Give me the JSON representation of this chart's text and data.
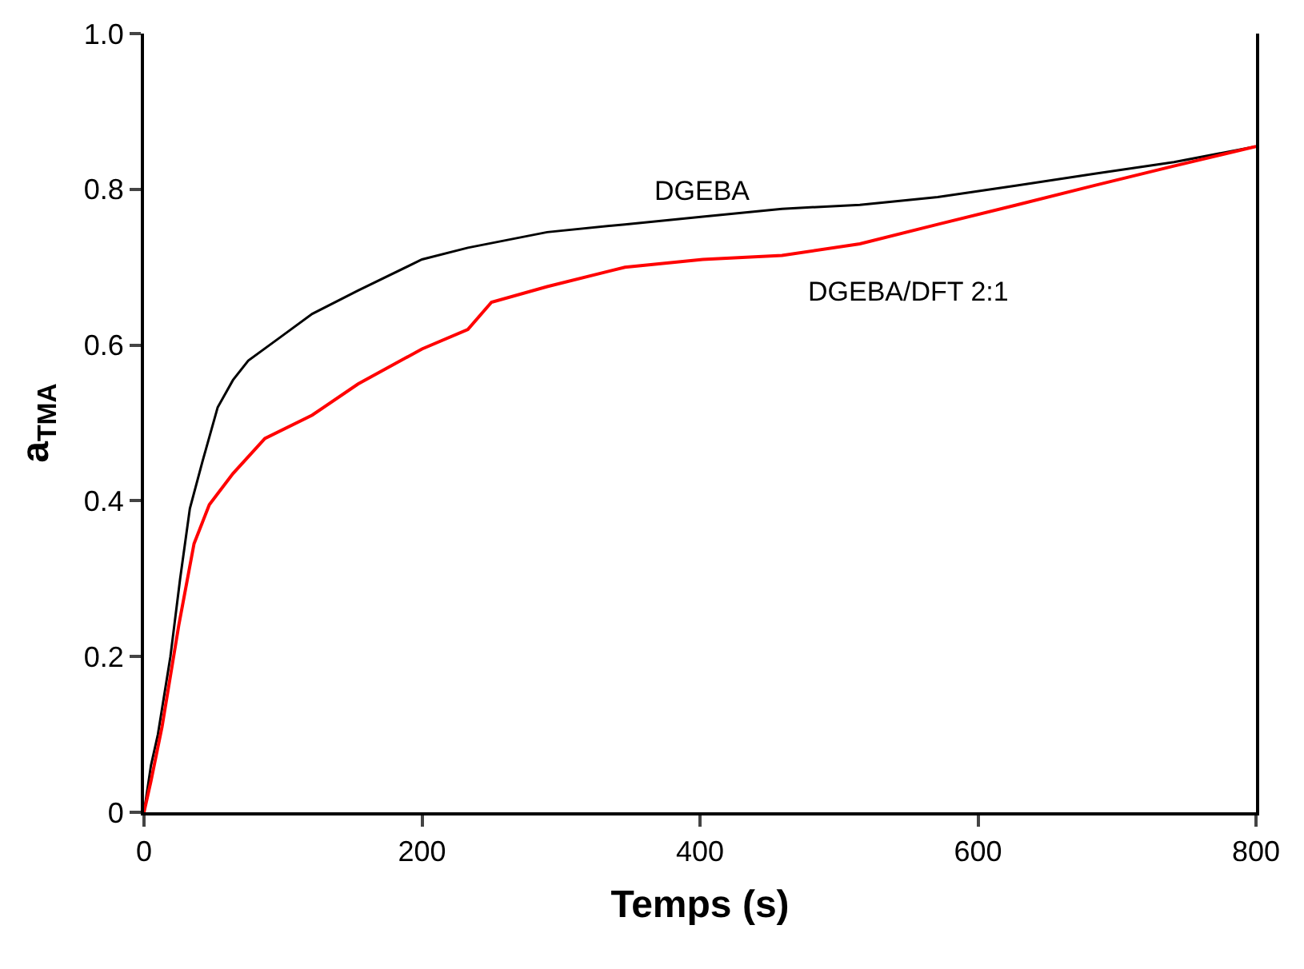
{
  "chart_data": {
    "type": "line",
    "xlabel": "Temps (s)",
    "ylabel": "a$_{TMA}$",
    "xlim": [
      0,
      800
    ],
    "xticks": [
      0,
      200,
      400,
      600,
      800
    ],
    "ylim": [
      0,
      1.0
    ],
    "yticks": [
      0,
      {
        "value": 0.2,
        "label": "0.2"
      },
      {
        "value": 0.4,
        "label": "0.4"
      },
      {
        "value": 0.6,
        "label": "0.6"
      },
      {
        "value": 0.8,
        "label": "0.8"
      },
      {
        "value": 1.0,
        "label": "1.0"
      }
    ],
    "legend": false,
    "marker": "none",
    "line_style": "solid",
    "series": [
      {
        "name": "DGEBA",
        "color": "#000000",
        "x": [
          0,
          5,
          10,
          19,
          26,
          33,
          42,
          53,
          64,
          75,
          98,
          121,
          154,
          200,
          233,
          290,
          346,
          402,
          459,
          515,
          571,
          628,
          684,
          741,
          800
        ],
        "values": [
          0,
          0.06,
          0.1,
          0.2,
          0.3,
          0.39,
          0.45,
          0.52,
          0.555,
          0.58,
          0.61,
          0.64,
          0.67,
          0.71,
          0.725,
          0.745,
          0.755,
          0.765,
          0.775,
          0.78,
          0.79,
          0.805,
          0.82,
          0.835,
          0.855
        ]
      },
      {
        "name": "DGEBA/DFT 2:1",
        "color": "#ff0000",
        "x": [
          0,
          5,
          13,
          25,
          36,
          47,
          64,
          87,
          121,
          154,
          200,
          233,
          250,
          290,
          346,
          402,
          459,
          515,
          571,
          628,
          684,
          741,
          800
        ],
        "values": [
          0,
          0.04,
          0.11,
          0.24,
          0.345,
          0.395,
          0.435,
          0.48,
          0.51,
          0.55,
          0.595,
          0.62,
          0.655,
          0.675,
          0.7,
          0.71,
          0.715,
          0.73,
          0.755,
          0.78,
          0.805,
          0.83,
          0.855
        ]
      }
    ]
  }
}
